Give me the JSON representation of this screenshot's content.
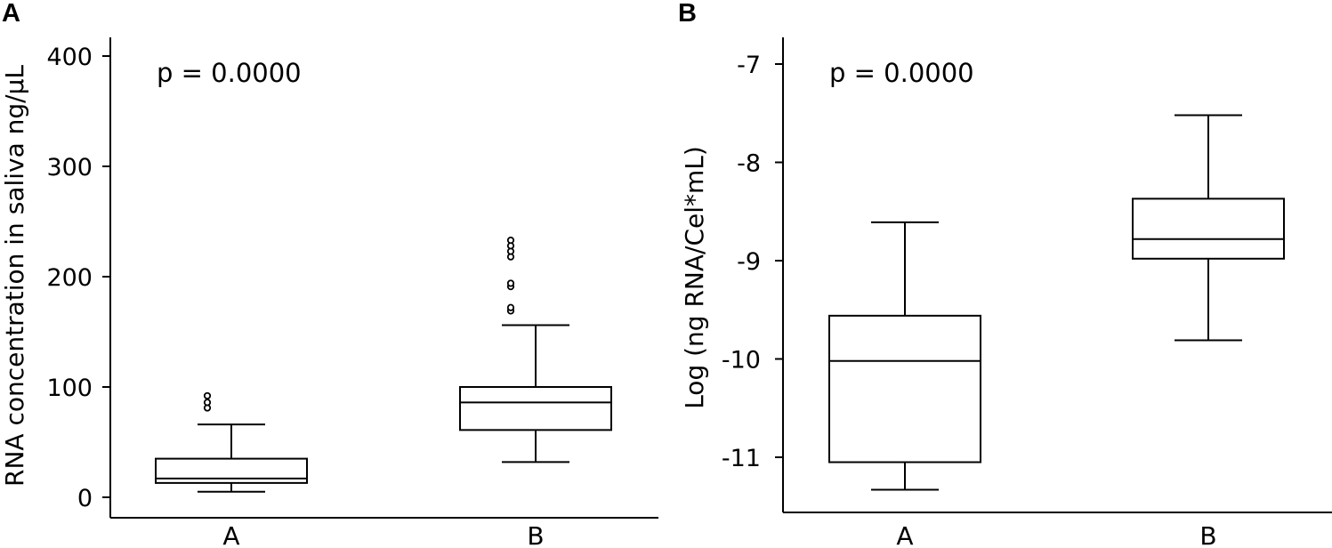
{
  "chart_data": [
    {
      "type": "box",
      "panel_label": "A",
      "annotation": "p = 0.0000",
      "xlabel": "",
      "ylabel": "RNA concentration in saliva ng/µL",
      "ylim": [
        -18,
        418
      ],
      "yticks": [
        "0",
        "100",
        "200",
        "300",
        "400"
      ],
      "ytick_values": [
        0,
        100,
        200,
        300,
        400
      ],
      "categories": [
        "A",
        "B"
      ],
      "boxes": [
        {
          "category": "A",
          "whisker_low": 5,
          "q1": 13,
          "median": 17,
          "q3": 35,
          "whisker_high": 66,
          "outliers": [
            81,
            86,
            92
          ]
        },
        {
          "category": "B",
          "whisker_low": 32,
          "q1": 61,
          "median": 86,
          "q3": 100,
          "whisker_high": 156,
          "outliers": [
            169,
            172,
            191,
            194,
            218,
            223,
            228,
            233
          ]
        }
      ],
      "grid": false,
      "legend": "none"
    },
    {
      "type": "box",
      "panel_label": "B",
      "annotation": "p = 0.0000",
      "xlabel": "",
      "ylabel": "Log (ng RNA/Cel*mL)",
      "ylim": [
        -11.55,
        -6.7
      ],
      "yticks": [
        "-7",
        "-8",
        "-9",
        "-10",
        "-11"
      ],
      "ytick_values": [
        -7,
        -8,
        -9,
        -10,
        -11
      ],
      "categories": [
        "A",
        "B"
      ],
      "boxes": [
        {
          "category": "A",
          "whisker_low": -11.33,
          "q1": -11.05,
          "median": -10.02,
          "q3": -9.56,
          "whisker_high": -8.61,
          "outliers": []
        },
        {
          "category": "B",
          "whisker_low": -9.81,
          "q1": -8.98,
          "median": -8.78,
          "q3": -8.37,
          "whisker_high": -7.52,
          "outliers": []
        }
      ],
      "grid": false,
      "legend": "none"
    }
  ]
}
